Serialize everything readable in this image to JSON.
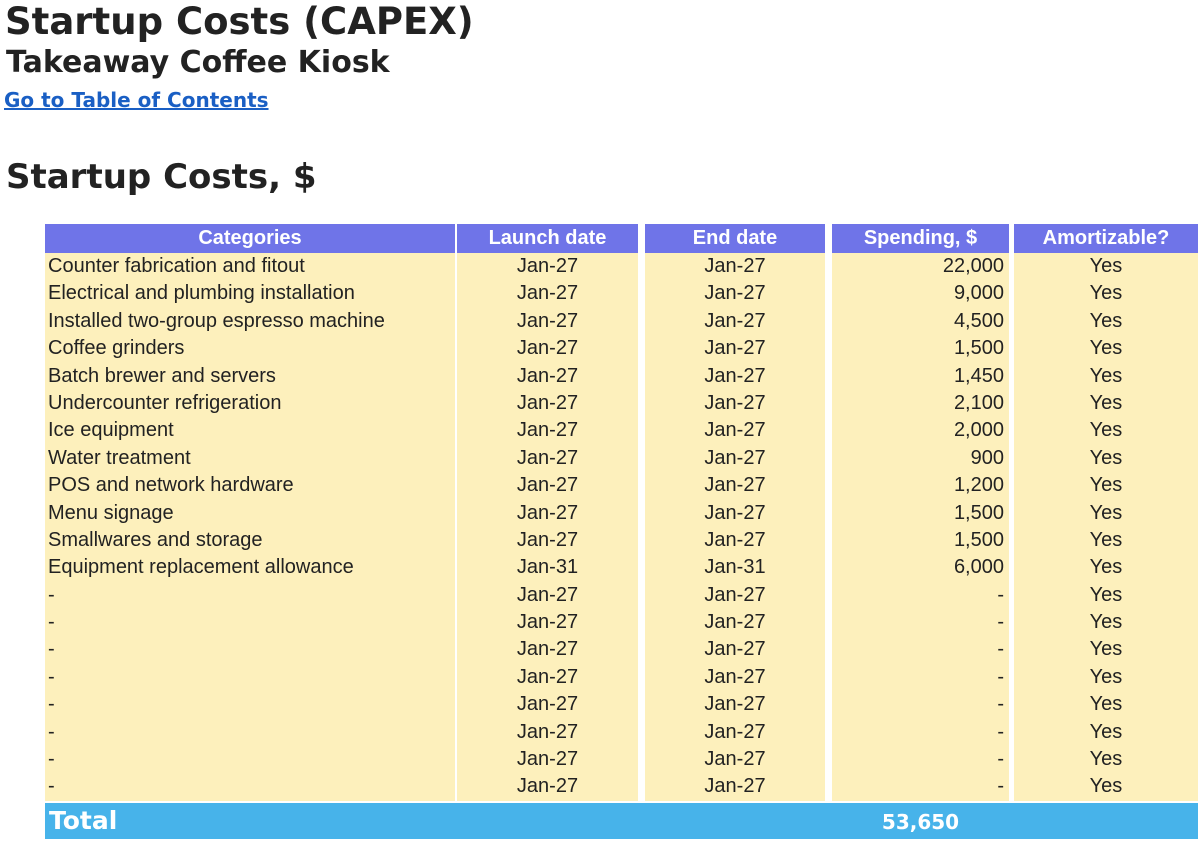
{
  "header": {
    "title": "Startup Costs (CAPEX)",
    "subtitle": "Takeaway Coffee Kiosk",
    "toc_link": "Go to Table of Contents",
    "section_title": "Startup Costs, $"
  },
  "table": {
    "columns": [
      "Categories",
      "Launch date",
      "End date",
      "Spending, $",
      "Amortizable?"
    ],
    "rows": [
      {
        "category": "Counter fabrication and fitout",
        "launch": "Jan-27",
        "end": "Jan-27",
        "spending": "22,000",
        "amortizable": "Yes"
      },
      {
        "category": "Electrical and plumbing installation",
        "launch": "Jan-27",
        "end": "Jan-27",
        "spending": "9,000",
        "amortizable": "Yes"
      },
      {
        "category": "Installed two-group espresso machine",
        "launch": "Jan-27",
        "end": "Jan-27",
        "spending": "4,500",
        "amortizable": "Yes"
      },
      {
        "category": "Coffee grinders",
        "launch": "Jan-27",
        "end": "Jan-27",
        "spending": "1,500",
        "amortizable": "Yes"
      },
      {
        "category": "Batch brewer and servers",
        "launch": "Jan-27",
        "end": "Jan-27",
        "spending": "1,450",
        "amortizable": "Yes"
      },
      {
        "category": "Undercounter refrigeration",
        "launch": "Jan-27",
        "end": "Jan-27",
        "spending": "2,100",
        "amortizable": "Yes"
      },
      {
        "category": "Ice equipment",
        "launch": "Jan-27",
        "end": "Jan-27",
        "spending": "2,000",
        "amortizable": "Yes"
      },
      {
        "category": "Water treatment",
        "launch": "Jan-27",
        "end": "Jan-27",
        "spending": "900",
        "amortizable": "Yes"
      },
      {
        "category": "POS and network hardware",
        "launch": "Jan-27",
        "end": "Jan-27",
        "spending": "1,200",
        "amortizable": "Yes"
      },
      {
        "category": "Menu signage",
        "launch": "Jan-27",
        "end": "Jan-27",
        "spending": "1,500",
        "amortizable": "Yes"
      },
      {
        "category": "Smallwares and storage",
        "launch": "Jan-27",
        "end": "Jan-27",
        "spending": "1,500",
        "amortizable": "Yes"
      },
      {
        "category": "Equipment replacement allowance",
        "launch": "Jan-31",
        "end": "Jan-31",
        "spending": "6,000",
        "amortizable": "Yes"
      },
      {
        "category": "-",
        "launch": "Jan-27",
        "end": "Jan-27",
        "spending": "-",
        "amortizable": "Yes"
      },
      {
        "category": "-",
        "launch": "Jan-27",
        "end": "Jan-27",
        "spending": "-",
        "amortizable": "Yes"
      },
      {
        "category": "-",
        "launch": "Jan-27",
        "end": "Jan-27",
        "spending": "-",
        "amortizable": "Yes"
      },
      {
        "category": "-",
        "launch": "Jan-27",
        "end": "Jan-27",
        "spending": "-",
        "amortizable": "Yes"
      },
      {
        "category": "-",
        "launch": "Jan-27",
        "end": "Jan-27",
        "spending": "-",
        "amortizable": "Yes"
      },
      {
        "category": "-",
        "launch": "Jan-27",
        "end": "Jan-27",
        "spending": "-",
        "amortizable": "Yes"
      },
      {
        "category": "-",
        "launch": "Jan-27",
        "end": "Jan-27",
        "spending": "-",
        "amortizable": "Yes"
      },
      {
        "category": "-",
        "launch": "Jan-27",
        "end": "Jan-27",
        "spending": "-",
        "amortizable": "Yes"
      }
    ],
    "total_label": "Total",
    "total_value": "53,650"
  },
  "colors": {
    "header_bg": "#6f74e8",
    "row_bg": "#fdf0bc",
    "total_bg": "#47b3ea",
    "link": "#1a5fc4"
  }
}
